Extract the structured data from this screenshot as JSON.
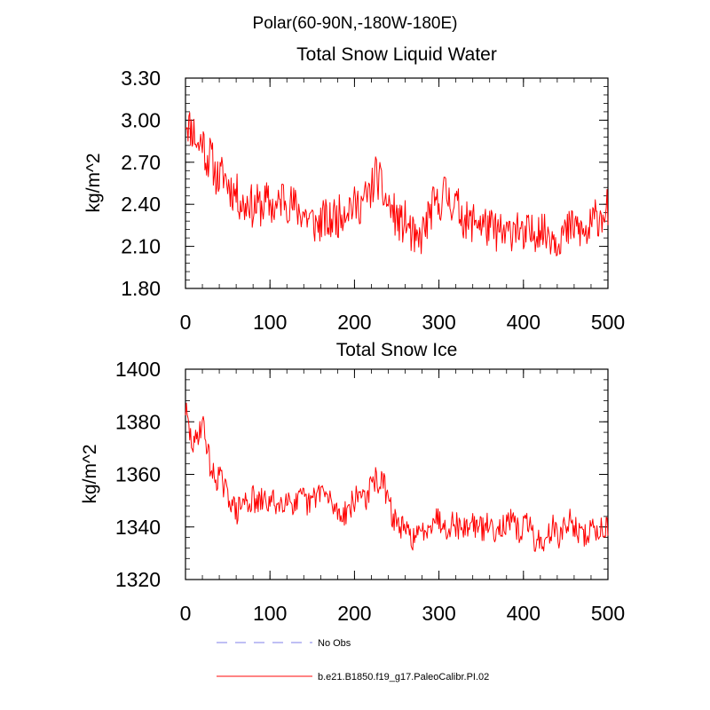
{
  "figure": {
    "suptitle": "Polar(60-90N,-180W-180E)"
  },
  "legend": {
    "entries": [
      {
        "label": "No Obs",
        "style": "dashed",
        "color": "#9999ee"
      },
      {
        "label": "b.e21.B1850.f19_g17.PaleoCalibr.PI.02",
        "style": "solid",
        "color": "#ff3b3b"
      }
    ]
  },
  "chart_data": [
    {
      "type": "line",
      "title": "Total Snow Liquid Water",
      "xlabel": "",
      "ylabel": "kg/m^2",
      "xlim": [
        0,
        500
      ],
      "ylim": [
        1.8,
        3.3
      ],
      "xticks": [
        0,
        100,
        200,
        300,
        400,
        500
      ],
      "xtick_labels": [
        "0",
        "100",
        "200",
        "300",
        "400",
        "500"
      ],
      "yticks": [
        1.8,
        2.1,
        2.4,
        2.7,
        3.0,
        3.3
      ],
      "ytick_labels": [
        "1.80",
        "2.10",
        "2.40",
        "2.70",
        "3.00",
        "3.30"
      ],
      "grid": false,
      "series": [
        {
          "name": "b.e21.B1850.f19_g17.PaleoCalibr.PI.02",
          "color": "#ff0000",
          "x_step": 5,
          "values": [
            3.02,
            2.95,
            2.92,
            2.8,
            2.88,
            2.72,
            2.75,
            2.62,
            2.58,
            2.62,
            2.55,
            2.5,
            2.48,
            2.42,
            2.38,
            2.45,
            2.36,
            2.4,
            2.38,
            2.42,
            2.4,
            2.37,
            2.38,
            2.48,
            2.42,
            2.4,
            2.38,
            2.35,
            2.34,
            2.3,
            2.28,
            2.25,
            2.27,
            2.3,
            2.25,
            2.32,
            2.3,
            2.35,
            2.38,
            2.4,
            2.38,
            2.4,
            2.42,
            2.45,
            2.5,
            2.62,
            2.55,
            2.45,
            2.4,
            2.35,
            2.3,
            2.25,
            2.28,
            2.22,
            2.15,
            2.1,
            2.2,
            2.25,
            2.35,
            2.4,
            2.38,
            2.5,
            2.45,
            2.42,
            2.4,
            2.35,
            2.3,
            2.25,
            2.28,
            2.3,
            2.26,
            2.25,
            2.22,
            2.22,
            2.2,
            2.18,
            2.18,
            2.2,
            2.28,
            2.22,
            2.12,
            2.2,
            2.18,
            2.22,
            2.25,
            2.18,
            2.2,
            2.18,
            2.15,
            2.2,
            2.18,
            2.22,
            2.25,
            2.22,
            2.2,
            2.18,
            2.24,
            2.3,
            2.32,
            2.35,
            2.38
          ],
          "noise_amplitude": 0.15,
          "noise_seed": 11
        }
      ]
    },
    {
      "type": "line",
      "title": "Total Snow Ice",
      "xlabel": "",
      "ylabel": "kg/m^2",
      "xlim": [
        0,
        500
      ],
      "ylim": [
        1320,
        1400
      ],
      "xticks": [
        0,
        100,
        200,
        300,
        400,
        500
      ],
      "xtick_labels": [
        "0",
        "100",
        "200",
        "300",
        "400",
        "500"
      ],
      "yticks": [
        1320,
        1340,
        1360,
        1380,
        1400
      ],
      "ytick_labels": [
        "1320",
        "1340",
        "1360",
        "1380",
        "1400"
      ],
      "grid": false,
      "series": [
        {
          "name": "b.e21.B1850.f19_g17.PaleoCalibr.PI.02",
          "color": "#ff0000",
          "x_step": 5,
          "values": [
            1385,
            1375,
            1370,
            1376,
            1380,
            1372,
            1362,
            1358,
            1360,
            1355,
            1352,
            1350,
            1345,
            1348,
            1350,
            1349,
            1351,
            1348,
            1350,
            1350,
            1349,
            1350,
            1348,
            1350,
            1352,
            1350,
            1348,
            1350,
            1351,
            1348,
            1350,
            1352,
            1355,
            1352,
            1350,
            1348,
            1346,
            1345,
            1346,
            1348,
            1350,
            1352,
            1354,
            1350,
            1356,
            1358,
            1357,
            1356,
            1350,
            1344,
            1342,
            1340,
            1338,
            1337,
            1336,
            1336,
            1338,
            1340,
            1342,
            1344,
            1343,
            1341,
            1340,
            1342,
            1341,
            1340,
            1339,
            1341,
            1342,
            1340,
            1339,
            1340,
            1341,
            1339,
            1340,
            1341,
            1340,
            1342,
            1340,
            1338,
            1340,
            1342,
            1338,
            1334,
            1336,
            1332,
            1338,
            1340,
            1336,
            1338,
            1340,
            1342,
            1341,
            1338,
            1336,
            1337,
            1340,
            1338,
            1339,
            1340,
            1341
          ],
          "noise_amplitude": 5,
          "noise_seed": 29
        }
      ]
    }
  ]
}
